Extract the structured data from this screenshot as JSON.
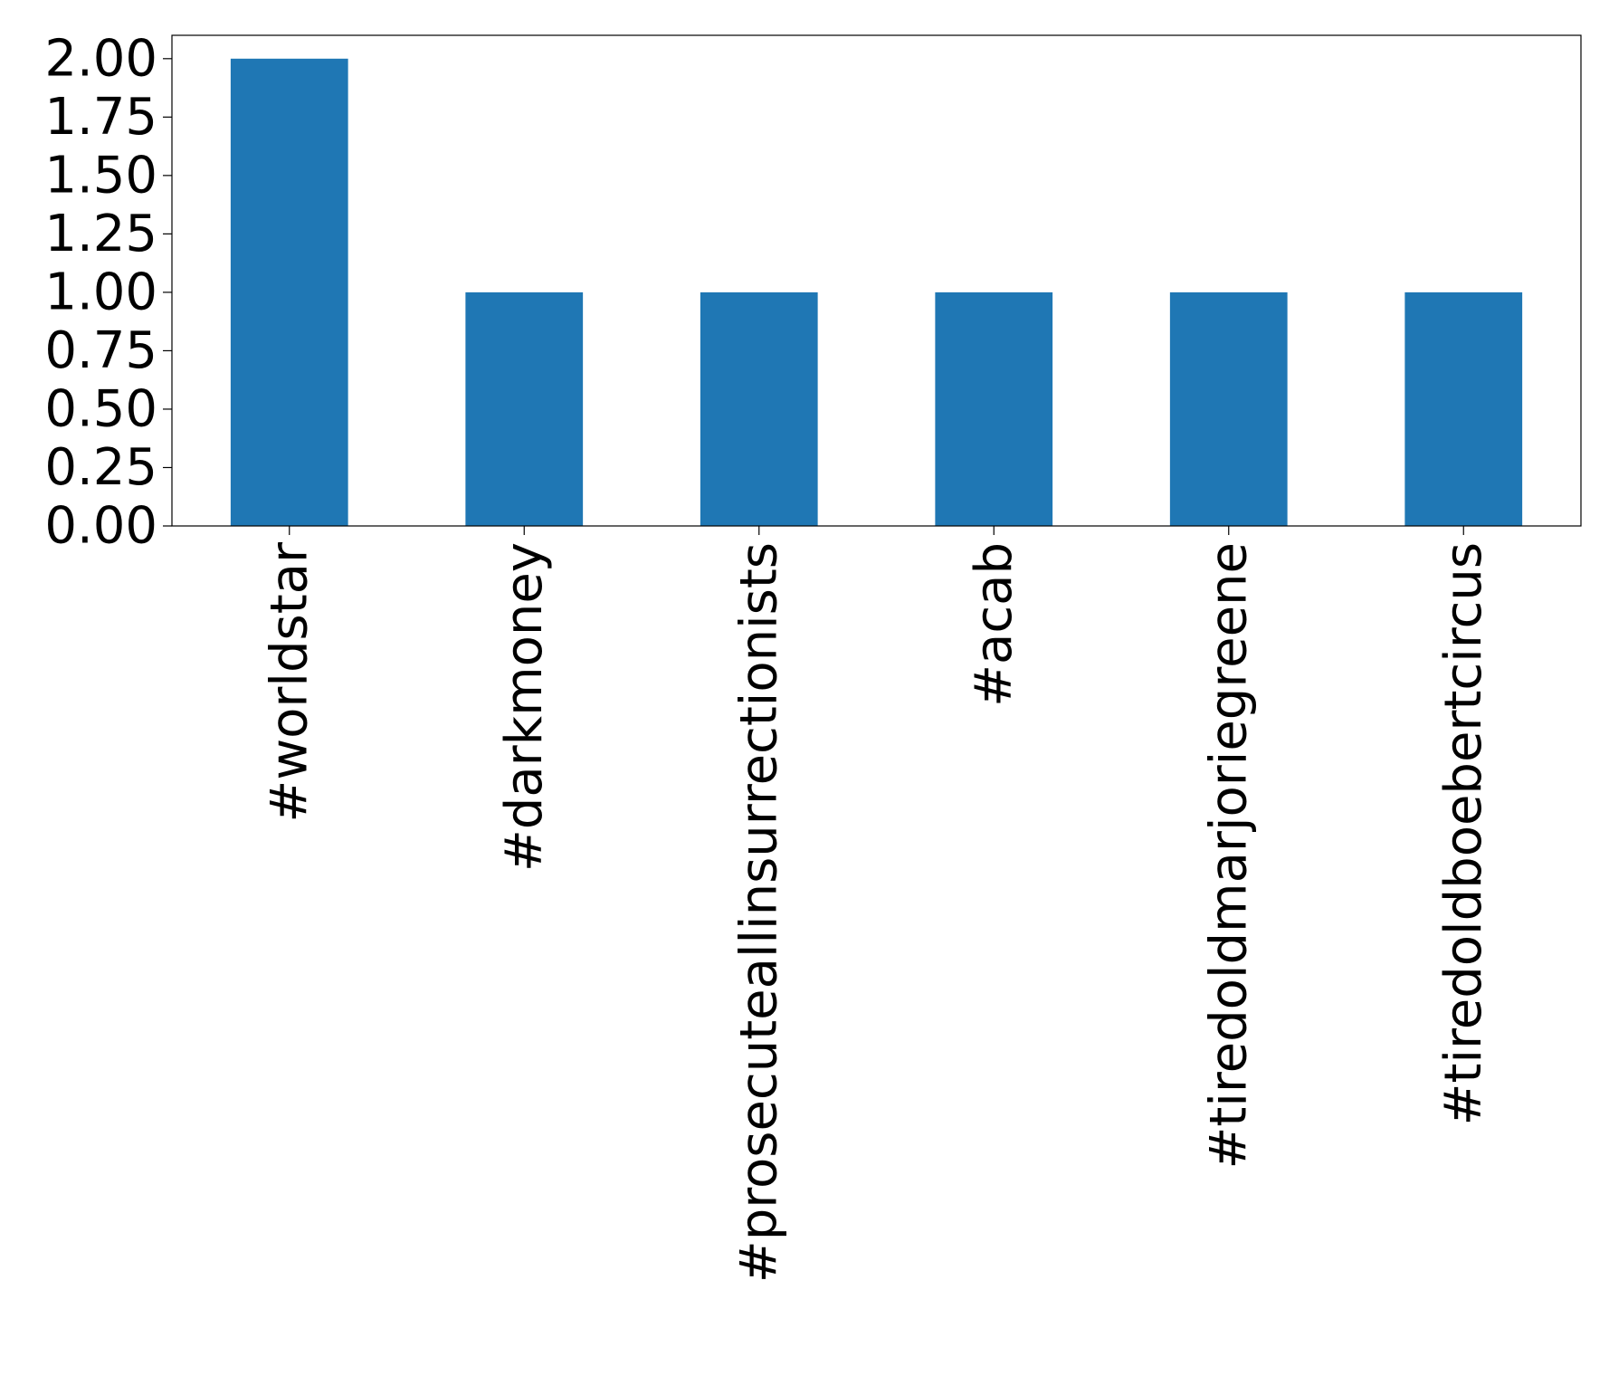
{
  "chart_data": {
    "type": "bar",
    "categories": [
      "#worldstar",
      "#darkmoney",
      "#prosecuteallinsurrectionists",
      "#acab",
      "#tiredoldmarjoriegreene",
      "#tiredoldboebertcircus"
    ],
    "values": [
      2,
      1,
      1,
      1,
      1,
      1
    ],
    "ylim": [
      0,
      2.1
    ],
    "yticks": [
      "0.00",
      "0.25",
      "0.50",
      "0.75",
      "1.00",
      "1.25",
      "1.50",
      "1.75",
      "2.00"
    ],
    "title": "",
    "xlabel": "",
    "ylabel": "",
    "grid": false,
    "bar_color": "#1f77b4"
  }
}
